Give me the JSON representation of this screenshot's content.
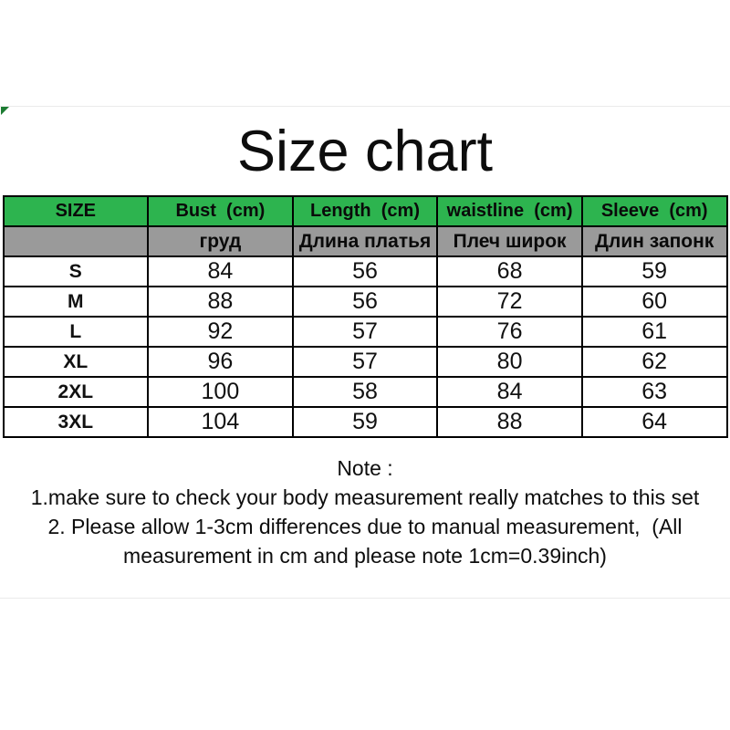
{
  "title": "Size chart",
  "colors": {
    "header_bg": "#2db44f",
    "subheader_bg": "#9a9a9a",
    "border": "#000000",
    "corner_marker": "#1d7c33"
  },
  "table": {
    "headers_en": [
      "SIZE",
      "Bust  (cm)",
      "Length  (cm)",
      "waistline  (cm)",
      "Sleeve  (cm)"
    ],
    "headers_ru": [
      "",
      "груд",
      "Длина платья",
      "Плеч широк",
      "Длин запонк"
    ],
    "rows": [
      [
        "S",
        "84",
        "56",
        "68",
        "59"
      ],
      [
        "M",
        "88",
        "56",
        "72",
        "60"
      ],
      [
        "L",
        "92",
        "57",
        "76",
        "61"
      ],
      [
        "XL",
        "96",
        "57",
        "80",
        "62"
      ],
      [
        "2XL",
        "100",
        "58",
        "84",
        "63"
      ],
      [
        "3XL",
        "104",
        "59",
        "88",
        "64"
      ]
    ]
  },
  "note": {
    "heading": "Note :",
    "lines": [
      "1.make sure to check your body measurement really matches to this set",
      "2. Please allow 1-3cm differences due to manual measurement,  (All",
      "measurement in cm and please note 1cm=0.39inch)"
    ]
  }
}
